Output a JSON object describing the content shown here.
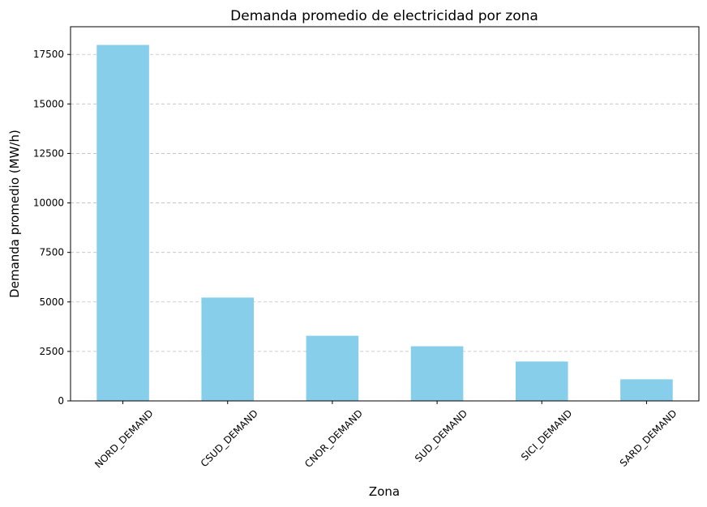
{
  "colors": {
    "bar": "#87ceeb",
    "axis": "#000000",
    "grid": "#b0b0b0"
  },
  "chart_data": {
    "type": "bar",
    "title": "Demanda promedio de electricidad por zona",
    "xlabel": "Zona",
    "ylabel": "Demanda promedio (MW/h)",
    "categories": [
      "NORD_DEMAND",
      "CSUD_DEMAND",
      "CNOR_DEMAND",
      "SUD_DEMAND",
      "SICI_DEMAND",
      "SARD_DEMAND"
    ],
    "values": [
      17980,
      5220,
      3290,
      2760,
      1990,
      1090
    ],
    "ylim": [
      0,
      18900
    ],
    "yticks": [
      0,
      2500,
      5000,
      7500,
      10000,
      12500,
      15000,
      17500
    ],
    "grid": "y-dashed",
    "xtick_rotation": 45
  }
}
